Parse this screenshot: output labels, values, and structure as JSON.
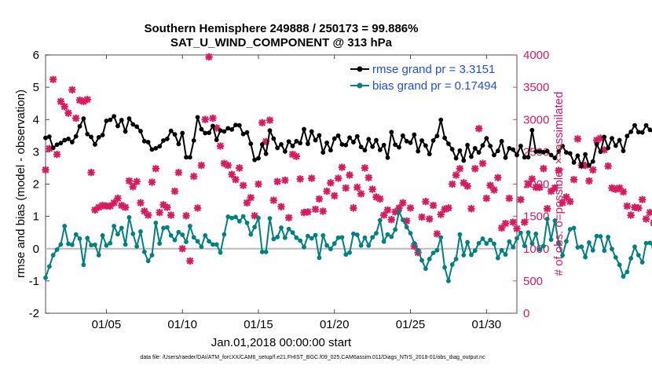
{
  "chart_data": {
    "type": "line",
    "title_line1": "Southern Hemisphere 249888 / 250173 = 99.886%",
    "title_line2": "SAT_U_WIND_COMPONENT @ 313 hPa",
    "xlabel": "Jan.01,2018 00:00:00 start",
    "ylabel_left": "rmse and bias (model - observation)",
    "ylabel_right": "# of obs: o=possible; ×=assimilated",
    "xlim": [
      1,
      32
    ],
    "ylim_left": [
      -2,
      6
    ],
    "ylim_right": [
      0,
      4000
    ],
    "x_ticks": [
      5,
      10,
      15,
      20,
      25,
      30
    ],
    "x_tick_labels": [
      "01/05",
      "01/10",
      "01/15",
      "01/20",
      "01/25",
      "01/30"
    ],
    "y_ticks_left": [
      "-2",
      "-1",
      "0",
      "1",
      "2",
      "3",
      "4",
      "5",
      "6"
    ],
    "y_ticks_right": [
      "0",
      "500",
      "1000",
      "1500",
      "2000",
      "2500",
      "3000",
      "3500",
      "4000"
    ],
    "x_start": 1.0,
    "x_step": 0.25,
    "series": [
      {
        "name": "rmse",
        "legend": "rmse grand pr = 3.3151",
        "color": "#000000",
        "values": [
          3.43,
          3.47,
          3.12,
          3.22,
          3.27,
          3.36,
          3.4,
          3.3,
          3.48,
          3.79,
          4.03,
          3.55,
          3.46,
          3.23,
          3.45,
          3.52,
          3.96,
          3.99,
          4.1,
          3.8,
          3.98,
          3.63,
          4.03,
          3.85,
          3.78,
          3.64,
          3.33,
          3.3,
          3.07,
          3.11,
          3.17,
          3.35,
          3.4,
          3.65,
          3.54,
          3.24,
          3.58,
          2.83,
          2.83,
          3.35,
          4.07,
          3.7,
          3.58,
          3.59,
          3.8,
          3.37,
          3.66,
          3.63,
          3.73,
          3.69,
          3.83,
          3.82,
          3.55,
          3.6,
          3.25,
          2.75,
          2.8,
          3.23,
          2.94,
          3.66,
          3.41,
          3.12,
          3.23,
          3.01,
          3.32,
          3.18,
          3.33,
          3.27,
          3.7,
          3.25,
          3.63,
          3.36,
          3.51,
          2.98,
          3.28,
          3.05,
          3.41,
          3.5,
          3.23,
          3.21,
          3.44,
          3.3,
          3.48,
          3.15,
          3.05,
          3.39,
          3.16,
          3.36,
          3.06,
          3.21,
          2.82,
          3.61,
          3.22,
          3.14,
          3.5,
          3.33,
          3.28,
          3.53,
          3.02,
          3.35,
          3.19,
          2.93,
          3.35,
          3.49,
          3.99,
          3.43,
          3.25,
          3.08,
          2.8,
          3.04,
          2.73,
          3.21,
          2.85,
          3.11,
          2.98,
          3.2,
          3.42,
          3.18,
          2.9,
          3.03,
          3.33,
          2.82,
          3.11,
          3.07,
          2.9,
          3.18,
          2.83,
          2.83,
          3.67,
          3.01,
          3.01,
          2.99,
          3.02,
          2.9,
          2.81,
          3.01,
          3.18,
          2.98,
          2.95,
          2.67,
          2.88,
          2.56,
          2.92,
          2.58,
          2.7,
          3.23,
          3.0,
          3.46,
          3.12,
          3.42,
          3.19,
          3.36,
          3.03,
          3.49,
          3.62,
          3.82,
          3.61,
          3.6,
          3.82,
          3.68,
          3.64,
          3.6,
          2.87,
          3.93
        ]
      },
      {
        "name": "bias",
        "legend": "bias grand pr = 0.17494",
        "color": "#008080",
        "values": [
          -0.9,
          -0.55,
          -0.2,
          -0.03,
          0.13,
          0.7,
          0.15,
          0.12,
          0.44,
          0.31,
          -0.5,
          0.33,
          0.11,
          0.12,
          -0.2,
          0.41,
          0.1,
          0.17,
          0.7,
          0.45,
          0.64,
          0.13,
          0.97,
          0.46,
          0.07,
          0.53,
          -0.1,
          -0.38,
          -0.2,
          0.8,
          0.16,
          0.64,
          0.66,
          0.41,
          0.27,
          0.51,
          0.43,
          0.21,
          0.7,
          0.35,
          0.23,
          0.06,
          0.41,
          0.23,
          0.13,
          0.13,
          -0.12,
          0.44,
          0.99,
          0.95,
          0.98,
          0.85,
          1.0,
          0.8,
          0.44,
          0.67,
          0.95,
          -0.1,
          -0.1,
          0.94,
          0.3,
          0.36,
          0.65,
          0.34,
          0.61,
          0.5,
          0.34,
          0.25,
          0.05,
          0.39,
          0.32,
          0.42,
          -0.28,
          0.41,
          0.1,
          -0.01,
          0.16,
          0.34,
          0.35,
          -0.18,
          -0.12,
          0.46,
          0.43,
          0.1,
          0.34,
          0.1,
          0.35,
          0.48,
          0.88,
          0.22,
          0.44,
          0.37,
          0.59,
          1.15,
          0.89,
          0.67,
          0.48,
          0.17,
          -0.05,
          -0.36,
          -0.62,
          -0.32,
          -0.13,
          -0.05,
          0.35,
          -0.58,
          -1.0,
          -0.49,
          -0.32,
          0.44,
          -0.2,
          0.2,
          -0.19,
          -0.06,
          0.17,
          0.31,
          0.16,
          0.27,
          0.15,
          -0.29,
          -0.05,
          -0.18,
          0.22,
          0.05,
          0.32,
          0.49,
          0.09,
          0.5,
          0.16,
          0.46,
          -0.02,
          0.08,
          0.92,
          0.28,
          0.87,
          0.16,
          -0.21,
          0.23,
          0.6,
          0.64,
          0.04,
          0.06,
          -0.26,
          0.19,
          -0.05,
          0.39,
          0.38,
          -0.06,
          0.36,
          -0.01,
          -0.27,
          -0.5,
          -0.86,
          -0.72,
          -0.3,
          0.06,
          -0.2,
          -0.42,
          0.17,
          0.18,
          0.03,
          0.6,
          0.45,
          0.68,
          0.51,
          0.27,
          1.17,
          0.09,
          0.63
        ]
      },
      {
        "name": "assimilated",
        "color": "#D81B60",
        "axis": "right",
        "marker": "cross",
        "values": [
          2220,
          2550,
          3620,
          2460,
          3280,
          3200,
          3100,
          3460,
          3020,
          3300,
          3280,
          3310,
          2180,
          1600,
          1640,
          1670,
          1660,
          1660,
          1710,
          1780,
          1670,
          1640,
          2050,
          1960,
          2040,
          1710,
          1580,
          1520,
          2030,
          2240,
          1560,
          1680,
          1640,
          1520,
          1890,
          2180,
          1000,
          1510,
          810,
          2120,
          1630,
          2290,
          3000,
          3970,
          3020,
          2870,
          2590,
          2320,
          2290,
          2150,
          2070,
          2250,
          1980,
          1710,
          1790,
          1510,
          2000,
          2950,
          2660,
          2990,
          1750,
          2040,
          1650,
          2060,
          1480,
          2460,
          2430,
          2080,
          1560,
          1570,
          2090,
          1610,
          1770,
          1580,
          1890,
          2020,
          1820,
          2090,
          2260,
          1940,
          2140,
          1630,
          1950,
          1850,
          2250,
          2100,
          1920,
          1800,
          1770,
          1520,
          1600,
          1450,
          1570,
          1630,
          1710,
          1430,
          1630,
          1040,
          940,
          1490,
          1730,
          1460,
          1670,
          1230,
          1530,
          1610,
          1630,
          2000,
          2140,
          2240,
          2020,
          1970,
          1620,
          2240,
          2860,
          2320,
          1780,
          1980,
          1910,
          2100,
          1320,
          1390,
          1780,
          1410,
          1310,
          1760,
          1410,
          2000,
          2080,
          1950,
          1950,
          2240,
          1620,
          1890,
          1940,
          2210,
          1710,
          1800,
          1730,
          2070,
          2700,
          2290,
          2290,
          2050,
          2220,
          2680,
          2710,
          2530,
          2280,
          1940,
          1920,
          1940,
          1880,
          1660,
          1520,
          1640,
          1630,
          1760,
          1460,
          1560,
          1400,
          1510,
          1570,
          1410,
          1510,
          1910
        ]
      }
    ],
    "legend_position": "top-right",
    "grid": false,
    "zero_line": 0,
    "footer": "data file: /Users/raeder/DAI/ATM_forcXX/CAM6_setup/f.e21.FHIST_BGC.f09_025.CAM6assim.011/Diags_NTrS_2018-01/obs_diag_output.nc"
  }
}
